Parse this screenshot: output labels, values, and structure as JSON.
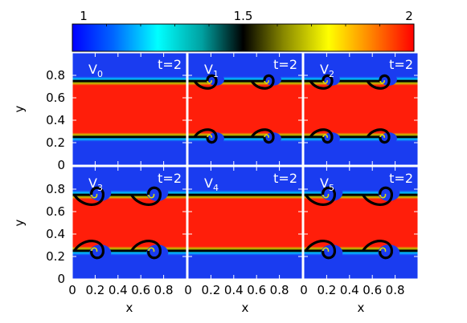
{
  "chart_data": {
    "type": "heatmap",
    "colorbar": {
      "min": 1,
      "max": 2,
      "tick_labels": [
        "1",
        "1.5",
        "2"
      ],
      "tick_values": [
        1,
        1.5,
        2
      ],
      "colormap_stops": [
        {
          "value": 1.0,
          "color": "#0000ff"
        },
        {
          "value": 1.12,
          "color": "#0066ff"
        },
        {
          "value": 1.25,
          "color": "#00ffff"
        },
        {
          "value": 1.38,
          "color": "#00a0a0"
        },
        {
          "value": 1.5,
          "color": "#000000"
        },
        {
          "value": 1.62,
          "color": "#8a8a00"
        },
        {
          "value": 1.75,
          "color": "#ffff00"
        },
        {
          "value": 1.87,
          "color": "#ff8800"
        },
        {
          "value": 2.0,
          "color": "#ff0000"
        }
      ]
    },
    "grid": {
      "rows": 2,
      "cols": 3
    },
    "xlabel": "x",
    "ylabel": "y",
    "xlim": [
      0,
      1
    ],
    "ylim": [
      0,
      1
    ],
    "x_tick_values": [
      0,
      0.2,
      0.4,
      0.6,
      0.8
    ],
    "x_tick_labels": [
      "0",
      "0.2",
      "0.4",
      "0.6",
      "0.8"
    ],
    "y_tick_values": [
      0,
      0.2,
      0.4,
      0.6,
      0.8
    ],
    "y_tick_labels": [
      "0",
      "0.2",
      "0.4",
      "0.6",
      "0.8"
    ],
    "panels": [
      {
        "label_main": "V",
        "label_sub": "0",
        "time": "t=2",
        "row": 0,
        "col": 0,
        "interface_low": 0.25,
        "interface_high": 0.75,
        "roll_amp": 0.0,
        "n_vortices": 0
      },
      {
        "label_main": "V",
        "label_sub": "1",
        "time": "t=2",
        "row": 0,
        "col": 1,
        "interface_low": 0.25,
        "interface_high": 0.75,
        "roll_amp": 0.06,
        "n_vortices": 2
      },
      {
        "label_main": "V",
        "label_sub": "2",
        "time": "t=2",
        "row": 0,
        "col": 2,
        "interface_low": 0.25,
        "interface_high": 0.75,
        "roll_amp": 0.06,
        "n_vortices": 2
      },
      {
        "label_main": "V",
        "label_sub": "3",
        "time": "t=2",
        "row": 1,
        "col": 0,
        "interface_low": 0.25,
        "interface_high": 0.75,
        "roll_amp": 0.08,
        "n_vortices": 2
      },
      {
        "label_main": "V",
        "label_sub": "4",
        "time": "t=2",
        "row": 1,
        "col": 1,
        "interface_low": 0.25,
        "interface_high": 0.75,
        "roll_amp": 0.0,
        "n_vortices": 0
      },
      {
        "label_main": "V",
        "label_sub": "5",
        "time": "t=2",
        "row": 1,
        "col": 2,
        "interface_low": 0.25,
        "interface_high": 0.75,
        "roll_amp": 0.08,
        "n_vortices": 2
      }
    ],
    "colors": {
      "low_density": "#1a3cf0",
      "high_density": "#ff1e0a",
      "interface": "#000000",
      "label_text": "#ffffff"
    }
  }
}
